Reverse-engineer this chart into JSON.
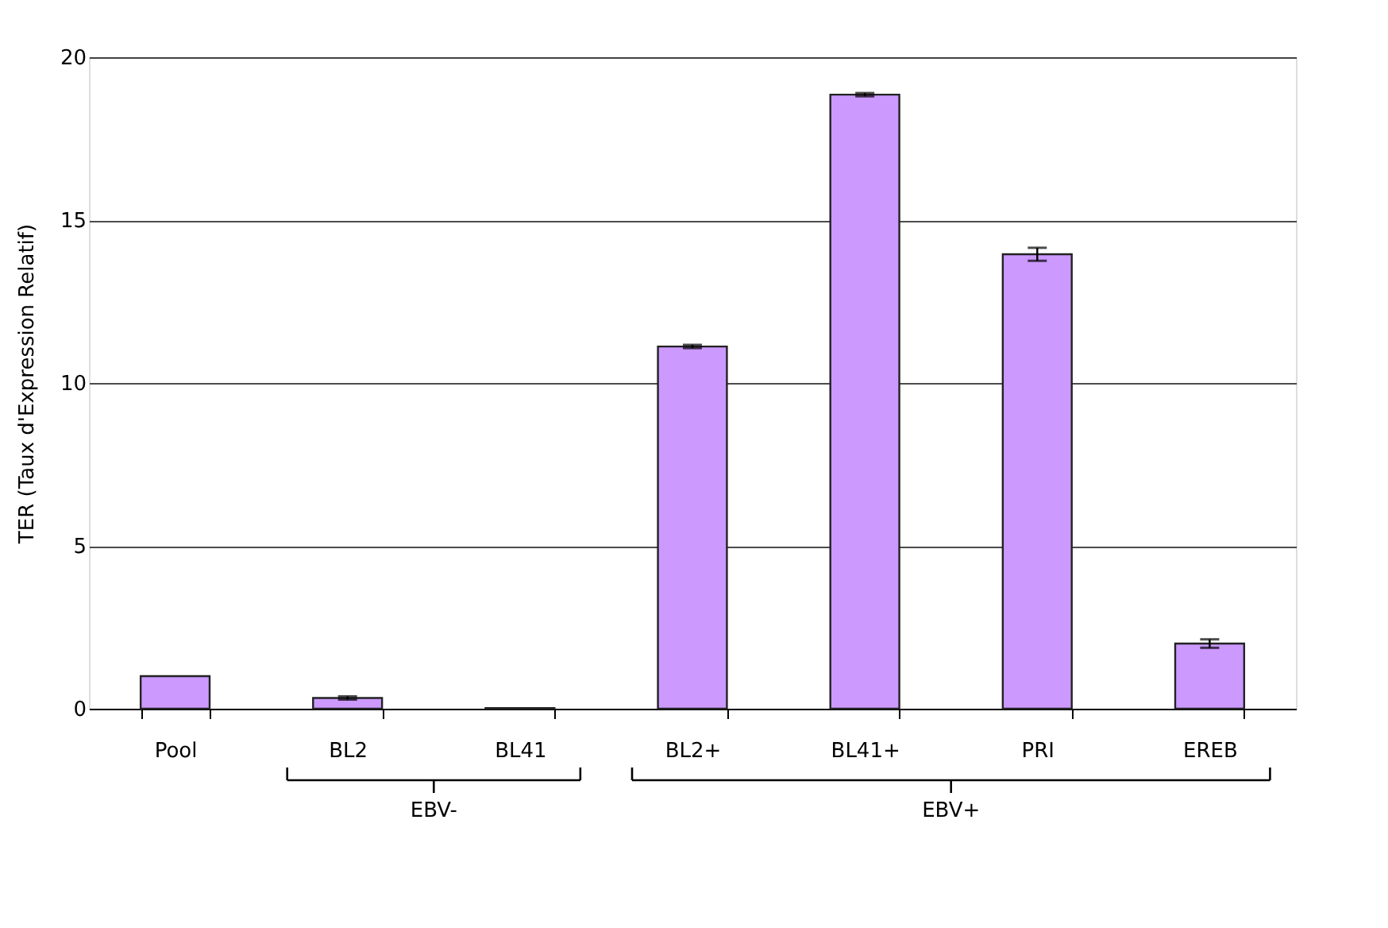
{
  "chart_data": {
    "type": "bar",
    "ylabel": "TER (Taux d'Expression Relatif)",
    "categories": [
      "Pool",
      "BL2",
      "BL41",
      "BL2+",
      "BL41+",
      "PRI",
      "EREB"
    ],
    "values": [
      1.0,
      0.33,
      0.02,
      11.12,
      18.85,
      13.95,
      2.0
    ],
    "errors": [
      null,
      0.05,
      null,
      0.05,
      0.05,
      0.2,
      0.13
    ],
    "color": "#cc99ff",
    "ylim": [
      0,
      20
    ],
    "yticks": [
      0,
      5,
      10,
      15,
      20
    ],
    "grid": "y",
    "annotations": [
      "EBV-",
      "EBV+"
    ]
  }
}
